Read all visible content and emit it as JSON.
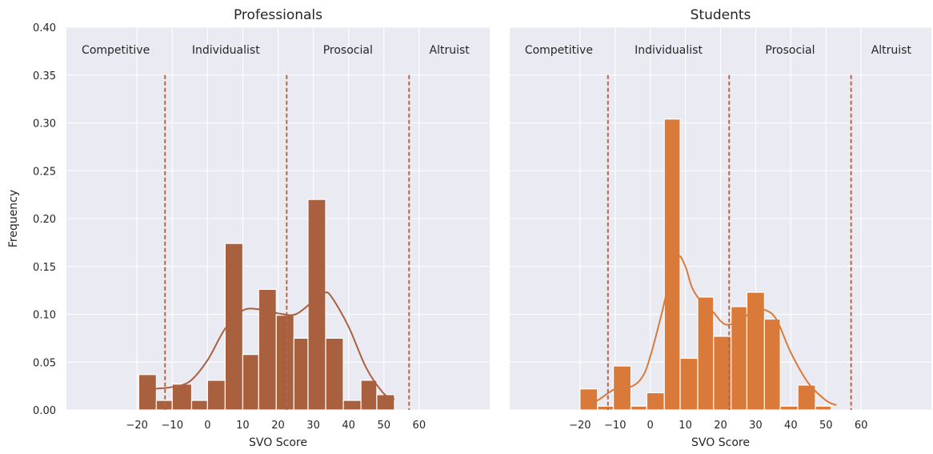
{
  "chart_data": [
    {
      "type": "histogram",
      "title": "Professionals",
      "xlabel": "SVO Score",
      "ylabel": "Frequency",
      "xlim": [
        -40,
        80
      ],
      "ylim": [
        0,
        0.4
      ],
      "xticks": [
        -20,
        -10,
        0,
        10,
        20,
        30,
        40,
        50,
        60
      ],
      "xtick_labels": [
        "−20",
        "−10",
        "0",
        "10",
        "20",
        "30",
        "40",
        "50",
        "60"
      ],
      "yticks": [
        0.0,
        0.05,
        0.1,
        0.15,
        0.2,
        0.25,
        0.3,
        0.35,
        0.4
      ],
      "ytick_labels": [
        "0.00",
        "0.05",
        "0.10",
        "0.15",
        "0.20",
        "0.25",
        "0.30",
        "0.35",
        "0.40"
      ],
      "bar_color": "#a9603f",
      "bin_edges": [
        -19.5,
        -14.5,
        -10,
        -4.5,
        0,
        5,
        10,
        14.5,
        19.5,
        24.5,
        28.5,
        33.5,
        38.5,
        43.5,
        48,
        53,
        57
      ],
      "values": [
        0.037,
        0.01,
        0.027,
        0.01,
        0.031,
        0.174,
        0.058,
        0.126,
        0.099,
        0.075,
        0.22,
        0.075,
        0.01,
        0.031,
        0.016,
        0
      ],
      "kde_x": [
        -19,
        -15,
        -10,
        -5,
        0,
        5,
        10,
        15,
        20,
        25,
        30,
        33,
        35,
        40,
        45,
        50,
        53
      ],
      "kde_y": [
        0.02,
        0.022,
        0.024,
        0.03,
        0.052,
        0.085,
        0.104,
        0.105,
        0.101,
        0.1,
        0.114,
        0.122,
        0.119,
        0.087,
        0.044,
        0.017,
        0.011
      ],
      "region_boundaries": [
        -12.04,
        22.45,
        57.15
      ],
      "regions": [
        "Competitive",
        "Individualist",
        "Prosocial",
        "Altruist"
      ]
    },
    {
      "type": "histogram",
      "title": "Students",
      "xlabel": "SVO Score",
      "ylabel": "",
      "xlim": [
        -40,
        80
      ],
      "ylim": [
        0,
        0.4
      ],
      "xticks": [
        -20,
        -10,
        0,
        10,
        20,
        30,
        40,
        50,
        60
      ],
      "xtick_labels": [
        "−20",
        "−10",
        "0",
        "10",
        "20",
        "30",
        "40",
        "50",
        "60"
      ],
      "bar_color": "#d97a3a",
      "bin_edges": [
        -20,
        -15,
        -10.5,
        -5.5,
        -1,
        4,
        8.5,
        13.5,
        18,
        23,
        27.5,
        32.5,
        37,
        42,
        47,
        51.5
      ],
      "values": [
        0.022,
        0.004,
        0.046,
        0.004,
        0.018,
        0.304,
        0.054,
        0.118,
        0.077,
        0.108,
        0.123,
        0.095,
        0.004,
        0.026,
        0.004
      ],
      "kde_x": [
        -19,
        -15,
        -10,
        -5,
        -2,
        0,
        3,
        6,
        8,
        10,
        12,
        15,
        18,
        20,
        22,
        25,
        30,
        33,
        36,
        40,
        45,
        50,
        53
      ],
      "kde_y": [
        0.005,
        0.01,
        0.022,
        0.025,
        0.036,
        0.056,
        0.097,
        0.143,
        0.161,
        0.15,
        0.127,
        0.111,
        0.102,
        0.093,
        0.089,
        0.093,
        0.104,
        0.104,
        0.094,
        0.06,
        0.028,
        0.01,
        0.005
      ],
      "region_boundaries": [
        -12.04,
        22.45,
        57.15
      ],
      "regions": [
        "Competitive",
        "Individualist",
        "Prosocial",
        "Altruist"
      ]
    }
  ]
}
